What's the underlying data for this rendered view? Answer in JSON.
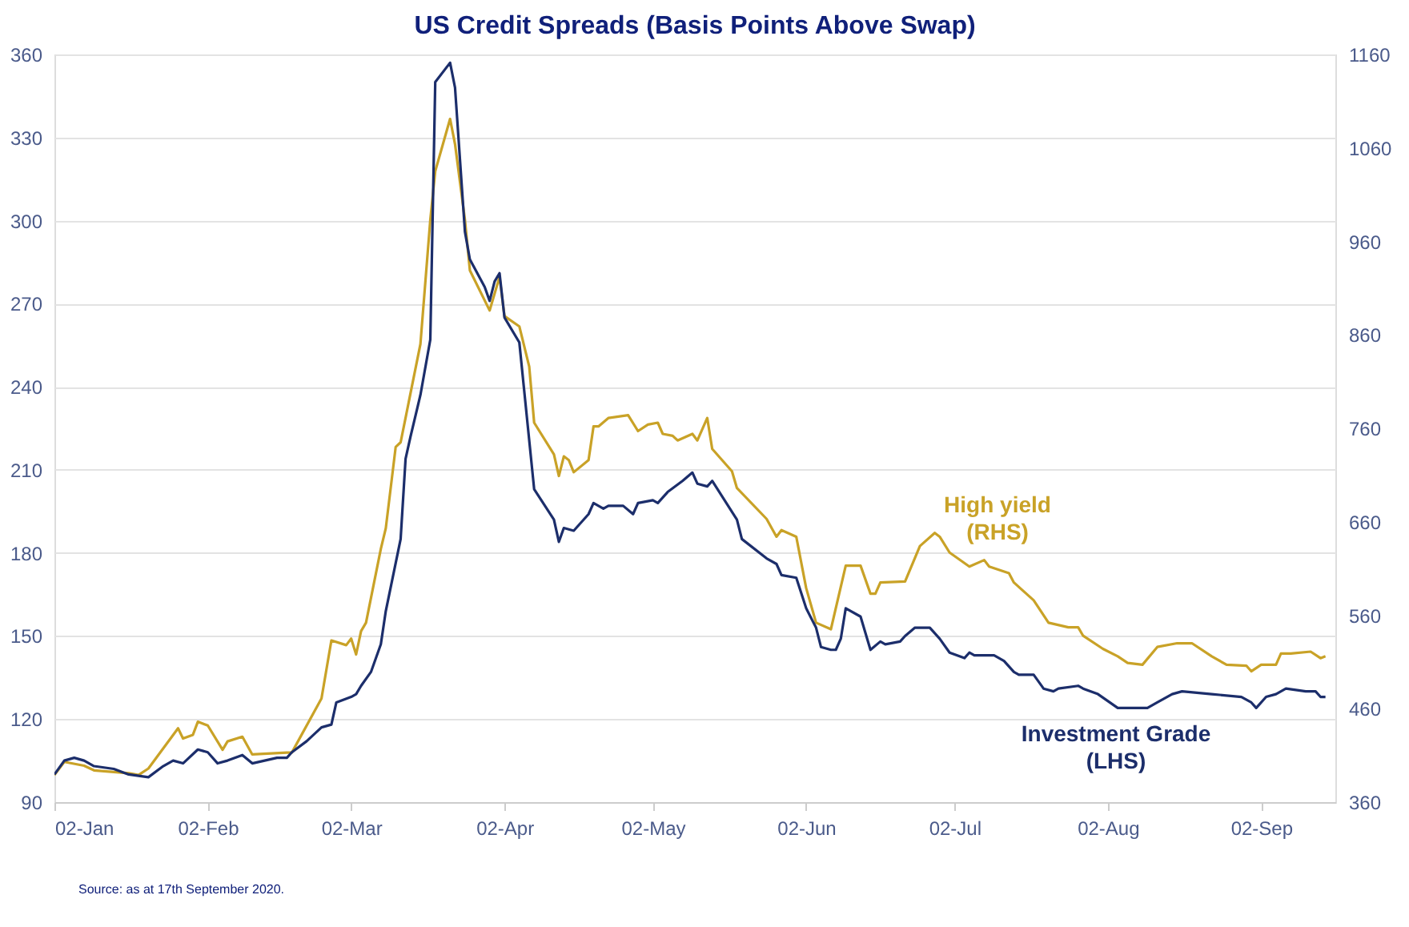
{
  "chart_data": {
    "type": "line",
    "title": "US Credit Spreads (Basis Points Above Swap)",
    "annotations": [
      "Source: as at 17th September 2020."
    ],
    "xlim": [
      "2020-01-02",
      "2020-09-17"
    ],
    "xticks": [
      {
        "value": "2020-01-02",
        "label": "02-Jan"
      },
      {
        "value": "2020-02-02",
        "label": "02-Feb"
      },
      {
        "value": "2020-03-02",
        "label": "02-Mar"
      },
      {
        "value": "2020-04-02",
        "label": "02-Apr"
      },
      {
        "value": "2020-05-02",
        "label": "02-May"
      },
      {
        "value": "2020-06-02",
        "label": "02-Jun"
      },
      {
        "value": "2020-07-02",
        "label": "02-Jul"
      },
      {
        "value": "2020-08-02",
        "label": "02-Aug"
      },
      {
        "value": "2020-09-02",
        "label": "02-Sep"
      }
    ],
    "ylim": [
      90,
      360
    ],
    "yticks": [
      90,
      120,
      150,
      180,
      210,
      240,
      270,
      300,
      330,
      360
    ],
    "y2lim": [
      360,
      1160
    ],
    "y2ticks": [
      360,
      460,
      560,
      660,
      760,
      860,
      960,
      1060,
      1160
    ],
    "grid": "y",
    "legend": false,
    "line_style": "solid",
    "marker": "none",
    "series": [
      {
        "name": "High yield (RHS)",
        "color": "#c9a227",
        "axis": "y2",
        "x": [
          "2020-01-02",
          "2020-01-04",
          "2020-01-08",
          "2020-01-10",
          "2020-01-17",
          "2020-01-19",
          "2020-01-21",
          "2020-01-27",
          "2020-01-28",
          "2020-01-30",
          "2020-01-31",
          "2020-02-02",
          "2020-02-05",
          "2020-02-06",
          "2020-02-09",
          "2020-02-11",
          "2020-02-18",
          "2020-02-19",
          "2020-02-25",
          "2020-02-27",
          "2020-03-01",
          "2020-03-02",
          "2020-03-03",
          "2020-03-04",
          "2020-03-05",
          "2020-03-08",
          "2020-03-09",
          "2020-03-11",
          "2020-03-12",
          "2020-03-16",
          "2020-03-18",
          "2020-03-19",
          "2020-03-22",
          "2020-03-23",
          "2020-03-25",
          "2020-03-26",
          "2020-03-30",
          "2020-04-01",
          "2020-04-02",
          "2020-04-05",
          "2020-04-07",
          "2020-04-08",
          "2020-04-12",
          "2020-04-13",
          "2020-04-14",
          "2020-04-15",
          "2020-04-16",
          "2020-04-19",
          "2020-04-20",
          "2020-04-21",
          "2020-04-23",
          "2020-04-27",
          "2020-04-29",
          "2020-05-01",
          "2020-05-03",
          "2020-05-04",
          "2020-05-06",
          "2020-05-07",
          "2020-05-10",
          "2020-05-11",
          "2020-05-13",
          "2020-05-14",
          "2020-05-18",
          "2020-05-19",
          "2020-05-25",
          "2020-05-27",
          "2020-05-28",
          "2020-05-31",
          "2020-06-02",
          "2020-06-04",
          "2020-06-07",
          "2020-06-10",
          "2020-06-13",
          "2020-06-15",
          "2020-06-16",
          "2020-06-17",
          "2020-06-22",
          "2020-06-25",
          "2020-06-28",
          "2020-06-29",
          "2020-07-01",
          "2020-07-05",
          "2020-07-08",
          "2020-07-09",
          "2020-07-13",
          "2020-07-14",
          "2020-07-18",
          "2020-07-21",
          "2020-07-25",
          "2020-07-27",
          "2020-07-28",
          "2020-08-01",
          "2020-08-04",
          "2020-08-06",
          "2020-08-09",
          "2020-08-12",
          "2020-08-16",
          "2020-08-19",
          "2020-08-23",
          "2020-08-26",
          "2020-08-30",
          "2020-08-31",
          "2020-09-02",
          "2020-09-05",
          "2020-09-06",
          "2020-09-08",
          "2020-09-12",
          "2020-09-14",
          "2020-09-15"
        ],
        "values": [
          389,
          403,
          399,
          394,
          391,
          389,
          396,
          439,
          428,
          432,
          446,
          442,
          416,
          425,
          430,
          411,
          413,
          413,
          471,
          533,
          528,
          535,
          518,
          543,
          552,
          631,
          653,
          740,
          745,
          850,
          983,
          1035,
          1091,
          1064,
          983,
          929,
          886,
          922,
          880,
          869,
          826,
          766,
          732,
          709,
          730,
          726,
          713,
          726,
          762,
          762,
          771,
          774,
          757,
          764,
          766,
          754,
          752,
          747,
          754,
          747,
          771,
          738,
          714,
          696,
          663,
          644,
          651,
          644,
          589,
          552,
          545,
          613,
          613,
          583,
          583,
          595,
          596,
          634,
          648,
          644,
          627,
          612,
          619,
          612,
          605,
          595,
          576,
          552,
          547,
          547,
          538,
          524,
          516,
          509,
          507,
          526,
          530,
          530,
          516,
          507,
          506,
          500,
          507,
          507,
          519,
          519,
          521,
          514,
          516
        ]
      },
      {
        "name": "Investment Grade (LHS)",
        "color": "#1c2e6b",
        "axis": "y",
        "x": [
          "2020-01-02",
          "2020-01-04",
          "2020-01-06",
          "2020-01-08",
          "2020-01-10",
          "2020-01-14",
          "2020-01-17",
          "2020-01-21",
          "2020-01-24",
          "2020-01-26",
          "2020-01-28",
          "2020-01-31",
          "2020-02-02",
          "2020-02-04",
          "2020-02-06",
          "2020-02-09",
          "2020-02-11",
          "2020-02-16",
          "2020-02-18",
          "2020-02-19",
          "2020-02-22",
          "2020-02-25",
          "2020-02-27",
          "2020-02-28",
          "2020-03-02",
          "2020-03-03",
          "2020-03-04",
          "2020-03-06",
          "2020-03-08",
          "2020-03-09",
          "2020-03-12",
          "2020-03-13",
          "2020-03-14",
          "2020-03-16",
          "2020-03-18",
          "2020-03-19",
          "2020-03-22",
          "2020-03-23",
          "2020-03-25",
          "2020-03-26",
          "2020-03-29",
          "2020-03-30",
          "2020-03-31",
          "2020-04-01",
          "2020-04-02",
          "2020-04-05",
          "2020-04-08",
          "2020-04-12",
          "2020-04-13",
          "2020-04-14",
          "2020-04-16",
          "2020-04-19",
          "2020-04-20",
          "2020-04-22",
          "2020-04-23",
          "2020-04-26",
          "2020-04-28",
          "2020-04-29",
          "2020-05-02",
          "2020-05-03",
          "2020-05-05",
          "2020-05-08",
          "2020-05-10",
          "2020-05-11",
          "2020-05-13",
          "2020-05-14",
          "2020-05-19",
          "2020-05-20",
          "2020-05-25",
          "2020-05-27",
          "2020-05-28",
          "2020-05-31",
          "2020-06-02",
          "2020-06-04",
          "2020-06-05",
          "2020-06-07",
          "2020-06-08",
          "2020-06-09",
          "2020-06-10",
          "2020-06-13",
          "2020-06-15",
          "2020-06-17",
          "2020-06-18",
          "2020-06-21",
          "2020-06-22",
          "2020-06-24",
          "2020-06-27",
          "2020-06-29",
          "2020-07-01",
          "2020-07-04",
          "2020-07-05",
          "2020-07-06",
          "2020-07-10",
          "2020-07-12",
          "2020-07-14",
          "2020-07-15",
          "2020-07-18",
          "2020-07-20",
          "2020-07-22",
          "2020-07-23",
          "2020-07-27",
          "2020-07-28",
          "2020-07-31",
          "2020-08-04",
          "2020-08-10",
          "2020-08-12",
          "2020-08-15",
          "2020-08-17",
          "2020-08-23",
          "2020-08-29",
          "2020-08-31",
          "2020-09-01",
          "2020-09-03",
          "2020-09-05",
          "2020-09-07",
          "2020-09-11",
          "2020-09-13",
          "2020-09-14",
          "2020-09-15"
        ],
        "values": [
          100,
          105,
          106,
          105,
          103,
          102,
          100,
          99,
          103,
          105,
          104,
          109,
          108,
          104,
          105,
          107,
          104,
          106,
          106,
          108,
          112,
          117,
          118,
          126,
          128,
          129,
          132,
          137,
          147,
          159,
          185,
          214,
          222,
          237,
          257,
          350,
          357,
          348,
          296,
          286,
          276,
          271,
          278,
          281,
          265,
          256,
          203,
          192,
          184,
          189,
          188,
          194,
          198,
          196,
          197,
          197,
          194,
          198,
          199,
          198,
          202,
          206,
          209,
          205,
          204,
          206,
          192,
          185,
          178,
          176,
          172,
          171,
          160,
          153,
          146,
          145,
          145,
          149,
          160,
          157,
          145,
          148,
          147,
          148,
          150,
          153,
          153,
          149,
          144,
          142,
          144,
          143,
          143,
          141,
          137,
          136,
          136,
          131,
          130,
          131,
          132,
          131,
          129,
          124,
          124,
          126,
          129,
          130,
          129,
          128,
          126,
          124,
          128,
          129,
          131,
          130,
          130,
          128,
          128
        ]
      }
    ]
  }
}
